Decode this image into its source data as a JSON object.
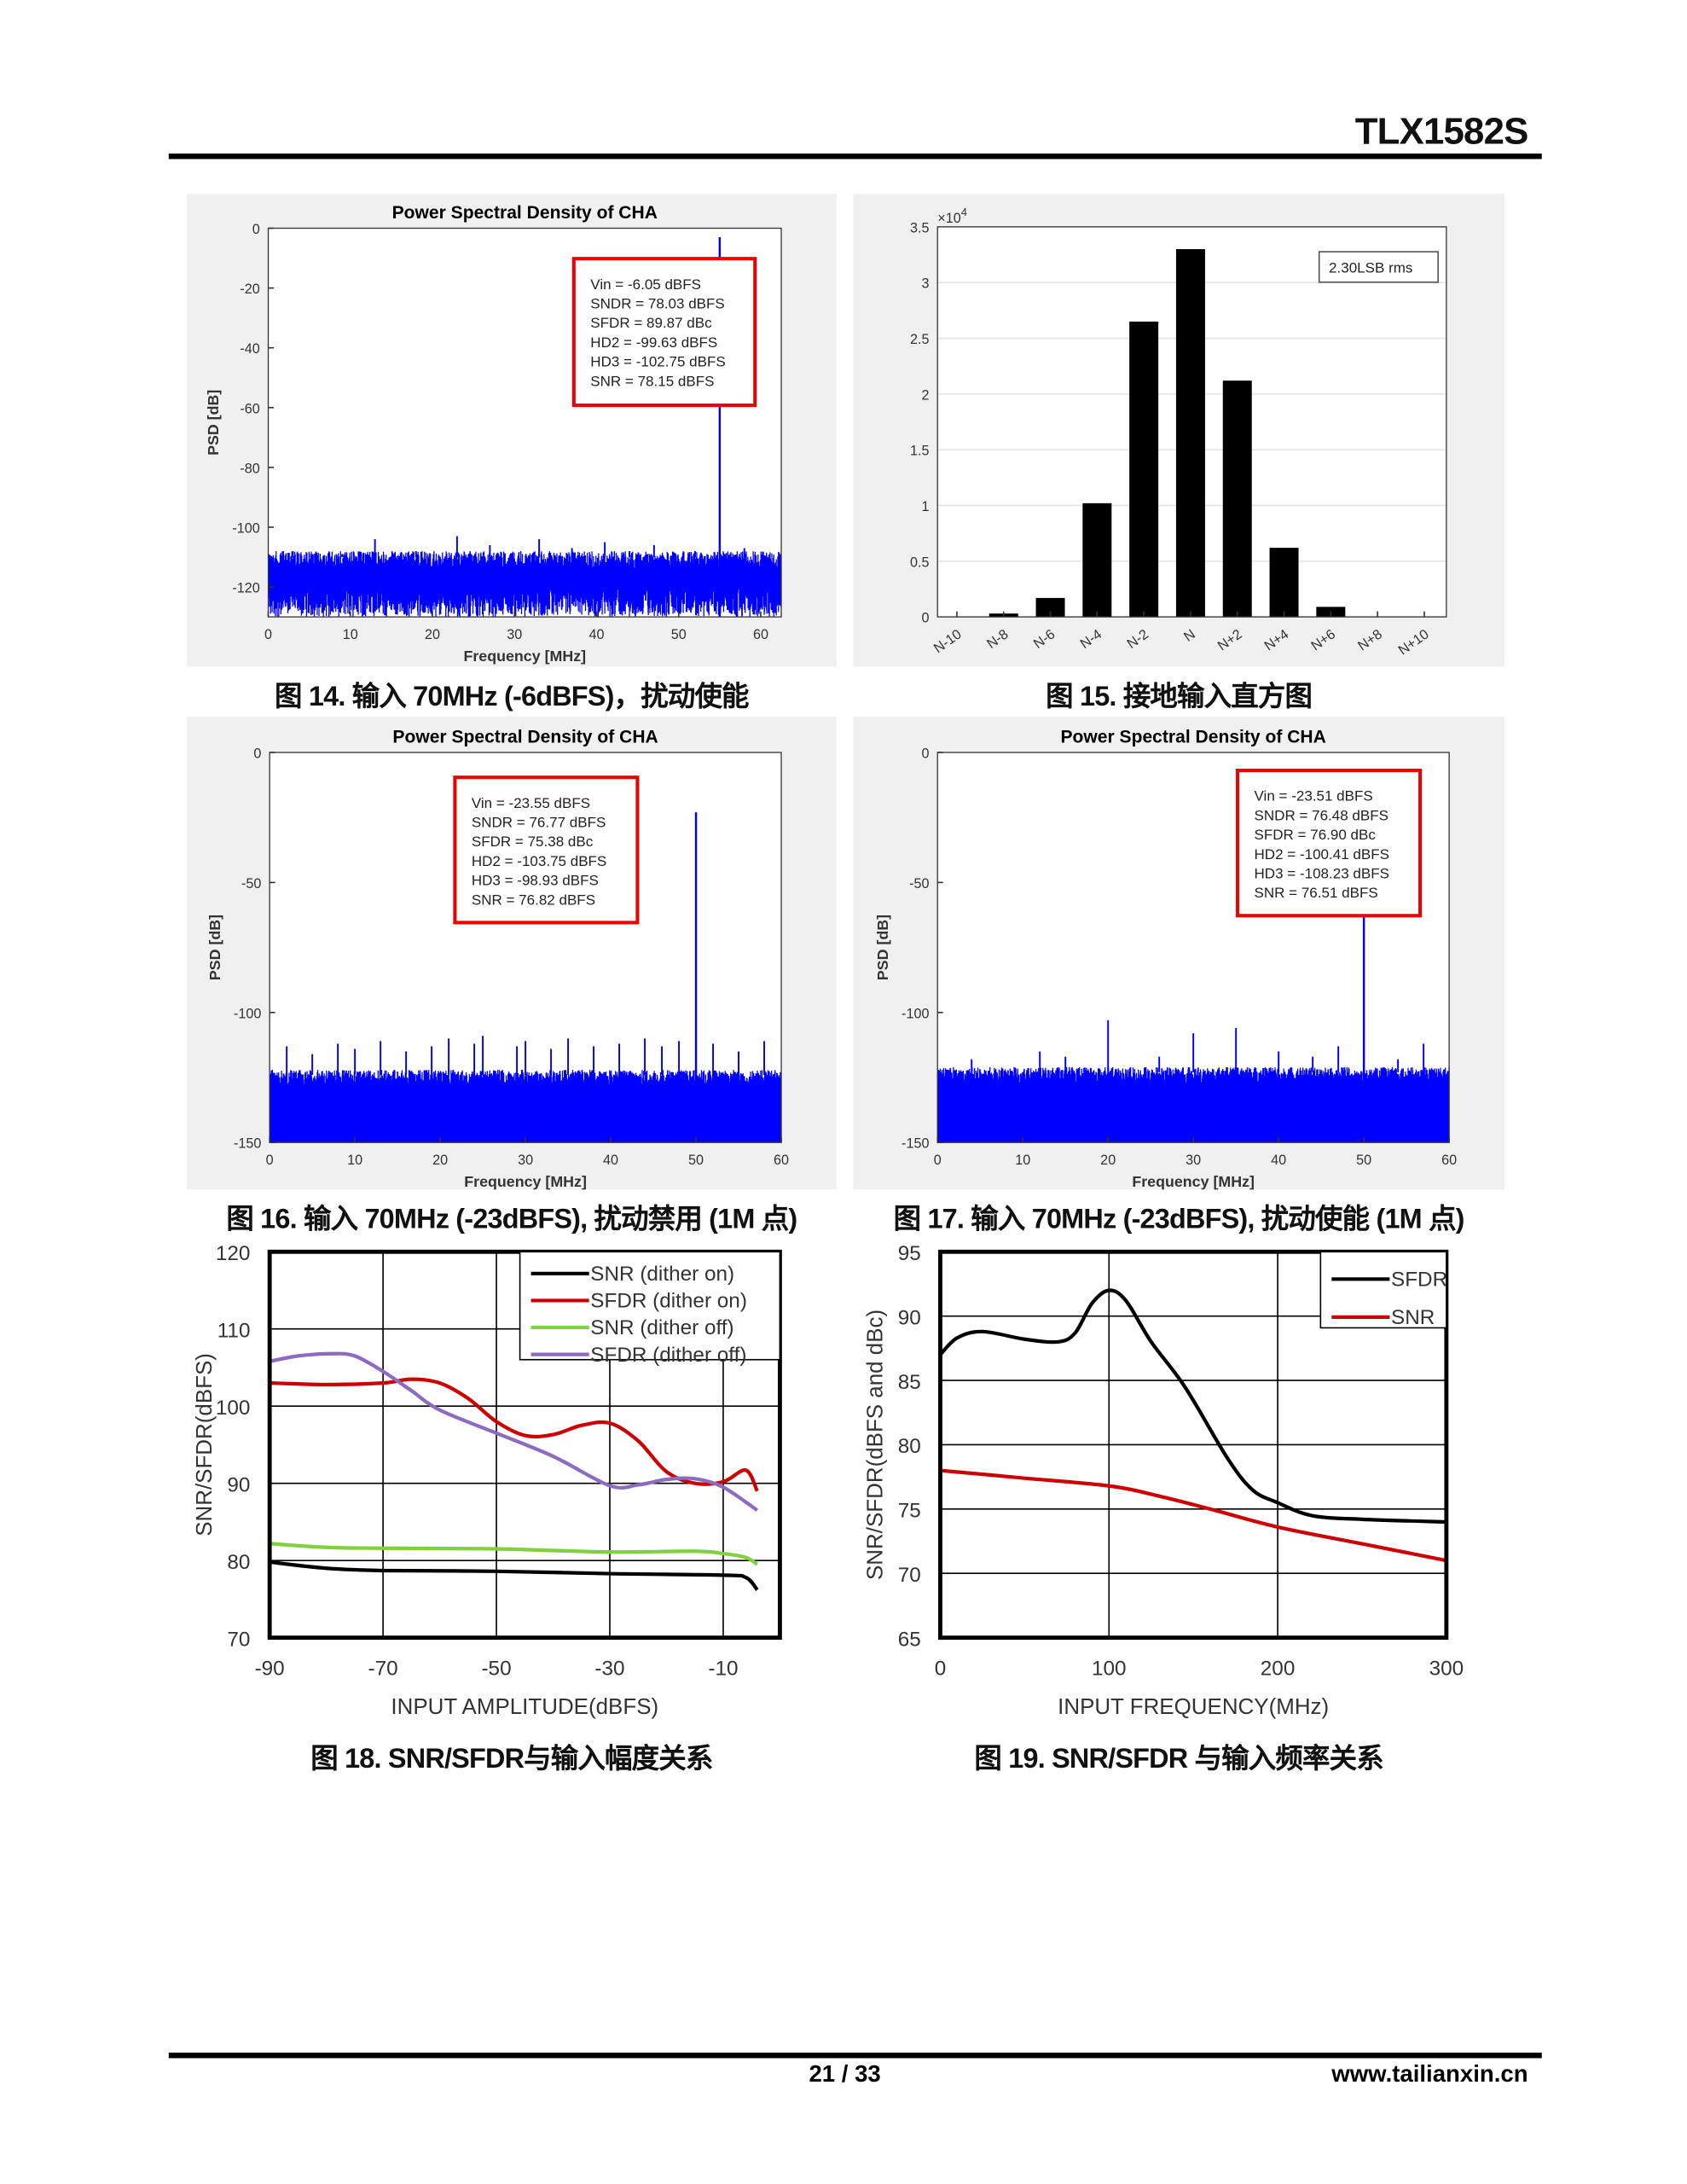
{
  "header": {
    "title": "TLX1582S"
  },
  "footer": {
    "page": "21 / 33",
    "url": "www.tailianxin.cn"
  },
  "captions": [
    "图 14. 输入 70MHz (-6dBFS)，扰动使能",
    "图 15. 接地输入直方图",
    "图 16. 输入 70MHz (-23dBFS), 扰动禁用 (1M 点)",
    "图 17. 输入 70MHz (-23dBFS), 扰动使能 (1M 点)",
    "图 18. SNR/SFDR与输入幅度关系",
    "图 19. SNR/SFDR 与输入频率关系"
  ],
  "chart_data": [
    {
      "id": "fig14",
      "type": "line",
      "title": "Power Spectral Density of CHA",
      "xlabel": "Frequency [MHz]",
      "ylabel": "PSD [dB]",
      "xlim": [
        0,
        62.5
      ],
      "ylim": [
        -130,
        0
      ],
      "xticks": [
        0,
        10,
        20,
        30,
        40,
        50,
        60
      ],
      "yticks": [
        0,
        -20,
        -40,
        -60,
        -80,
        -100,
        -120
      ],
      "color": "#0000ff",
      "tone": {
        "freq": 55,
        "level": -3
      },
      "noise_floor": [
        -130,
        -110
      ],
      "spurs": [
        [
          3,
          -108
        ],
        [
          9,
          -109
        ],
        [
          13,
          -104
        ],
        [
          18,
          -108
        ],
        [
          23,
          -103
        ],
        [
          27,
          -106
        ],
        [
          33,
          -104
        ],
        [
          37,
          -107
        ],
        [
          41,
          -105
        ],
        [
          44,
          -108
        ],
        [
          47,
          -106
        ],
        [
          52,
          -108
        ],
        [
          58,
          -107
        ]
      ],
      "annotation": [
        "Vin = -6.05 dBFS",
        "SNDR = 78.03 dBFS",
        "SFDR = 89.87 dBc",
        "HD2 = -99.63 dBFS",
        "HD3 = -102.75 dBFS",
        "SNR  = 78.15 dBFS"
      ]
    },
    {
      "id": "fig15",
      "type": "bar",
      "categories": [
        "N-10",
        "N-8",
        "N-6",
        "N-4",
        "N-2",
        "N",
        "N+2",
        "N+4",
        "N+6",
        "N+8",
        "N+10"
      ],
      "values": [
        0,
        300,
        1700,
        10200,
        26500,
        33000,
        21200,
        6200,
        900,
        0,
        0
      ],
      "ylim": [
        0,
        35000
      ],
      "yticks": [
        0,
        0.5,
        1,
        1.5,
        2,
        2.5,
        3,
        3.5
      ],
      "y_multiplier": "×10",
      "y_multiplier_exp": "4",
      "legend": "2.30LSB rms",
      "color": "#000000"
    },
    {
      "id": "fig16",
      "type": "line",
      "title": "Power Spectral Density of CHA",
      "xlabel": "Frequency [MHz]",
      "ylabel": "PSD [dB]",
      "xlim": [
        0,
        60
      ],
      "ylim": [
        -150,
        0
      ],
      "xticks": [
        0,
        10,
        20,
        30,
        40,
        50,
        60
      ],
      "yticks": [
        0,
        -50,
        -100,
        -150
      ],
      "color": "#0000ff",
      "tone": {
        "freq": 50,
        "level": -23
      },
      "noise_floor": [
        -150,
        -124
      ],
      "spurs": [
        [
          2,
          -113
        ],
        [
          5,
          -116
        ],
        [
          8,
          -112
        ],
        [
          10,
          -114
        ],
        [
          13,
          -111
        ],
        [
          16,
          -115
        ],
        [
          19,
          -113
        ],
        [
          21,
          -110
        ],
        [
          24,
          -112
        ],
        [
          25,
          -109
        ],
        [
          29,
          -113
        ],
        [
          30,
          -111
        ],
        [
          33,
          -114
        ],
        [
          35,
          -110
        ],
        [
          38,
          -113
        ],
        [
          41,
          -112
        ],
        [
          44,
          -110
        ],
        [
          46,
          -113
        ],
        [
          48,
          -111
        ],
        [
          52,
          -112
        ],
        [
          55,
          -115
        ],
        [
          58,
          -111
        ]
      ],
      "annotation": [
        "Vin = -23.55 dBFS",
        "SNDR = 76.77 dBFS",
        "SFDR = 75.38 dBc",
        "HD2 = -103.75 dBFS",
        "HD3 = -98.93 dBFS",
        "SNR = 76.82 dBFS"
      ]
    },
    {
      "id": "fig17",
      "type": "line",
      "title": "Power Spectral Density of CHA",
      "xlabel": "Frequency [MHz]",
      "ylabel": "PSD [dB]",
      "xlim": [
        0,
        60
      ],
      "ylim": [
        -150,
        0
      ],
      "xticks": [
        0,
        10,
        20,
        30,
        40,
        50,
        60
      ],
      "yticks": [
        0,
        -50,
        -100,
        -150
      ],
      "color": "#0000ff",
      "tone": {
        "freq": 50,
        "level": -57
      },
      "noise_floor": [
        -150,
        -123
      ],
      "spurs": [
        [
          4,
          -118
        ],
        [
          12,
          -115
        ],
        [
          15,
          -117
        ],
        [
          20,
          -103
        ],
        [
          26,
          -117
        ],
        [
          30,
          -108
        ],
        [
          35,
          -106
        ],
        [
          40,
          -115
        ],
        [
          44,
          -117
        ],
        [
          47,
          -113
        ],
        [
          54,
          -118
        ],
        [
          57,
          -112
        ]
      ],
      "annotation": [
        "Vin = -23.51 dBFS",
        "SNDR = 76.48 dBFS",
        "SFDR = 76.90 dBc",
        "HD2 = -100.41 dBFS",
        "HD3 = -108.23 dBFS",
        "SNR = 76.51 dBFS"
      ]
    },
    {
      "id": "fig18",
      "type": "line",
      "xlabel": "INPUT AMPLITUDE(dBFS)",
      "ylabel": "SNR/SFDR(dBFS)",
      "xlim": [
        -90,
        0
      ],
      "ylim": [
        70,
        120
      ],
      "xticks": [
        -90,
        -70,
        -50,
        -30,
        -10
      ],
      "yticks": [
        70,
        80,
        90,
        100,
        110,
        120
      ],
      "grid": true,
      "legend_position": "top-right",
      "series": [
        {
          "name": "SNR  (dither on)",
          "color": "#000000",
          "x": [
            -90,
            -80,
            -70,
            -50,
            -30,
            -10,
            -6,
            -4
          ],
          "y": [
            79.8,
            79,
            78.7,
            78.6,
            78.3,
            78.1,
            77.8,
            76.2
          ]
        },
        {
          "name": "SFDR  (dither on)",
          "color": "#cc0000",
          "x": [
            -90,
            -80,
            -70,
            -65,
            -60,
            -55,
            -50,
            -45,
            -40,
            -35,
            -30,
            -25,
            -20,
            -15,
            -10,
            -6,
            -4
          ],
          "y": [
            103,
            102.8,
            103,
            103.5,
            103,
            101,
            98,
            96.2,
            96.3,
            97.5,
            97.8,
            95.5,
            91.5,
            90,
            90.2,
            91.7,
            89
          ]
        },
        {
          "name": "SNR  (dither off)",
          "color": "#80d040",
          "x": [
            -90,
            -80,
            -70,
            -50,
            -30,
            -15,
            -10,
            -6,
            -4
          ],
          "y": [
            82.2,
            81.7,
            81.6,
            81.5,
            81.1,
            81.2,
            80.9,
            80.4,
            79.5
          ]
        },
        {
          "name": "SFDR  (dither off)",
          "color": "#8c6cc0",
          "x": [
            -90,
            -85,
            -79,
            -75,
            -70,
            -65,
            -60,
            -50,
            -40,
            -30,
            -25,
            -20,
            -15,
            -10,
            -4
          ],
          "y": [
            105.8,
            106.5,
            106.8,
            106.5,
            104.5,
            102,
            99.5,
            96.5,
            93.5,
            89.7,
            89.8,
            90.5,
            90.6,
            89.5,
            86.5
          ]
        }
      ]
    },
    {
      "id": "fig19",
      "type": "line",
      "xlabel": "INPUT FREQUENCY(MHz)",
      "ylabel": "SNR/SFDR(dBFS and dBc)",
      "xlim": [
        0,
        300
      ],
      "ylim": [
        65,
        95
      ],
      "xticks": [
        0,
        100,
        200,
        300
      ],
      "yticks": [
        65,
        70,
        75,
        80,
        85,
        90,
        95
      ],
      "grid": true,
      "legend_position": "top-right",
      "series": [
        {
          "name": "SFDR",
          "color": "#000000",
          "x": [
            0,
            10,
            25,
            50,
            70,
            80,
            90,
            100,
            110,
            125,
            145,
            170,
            185,
            200,
            220,
            250,
            300
          ],
          "y": [
            87,
            88.3,
            88.8,
            88.2,
            88,
            88.7,
            91,
            92,
            91.2,
            88,
            84.5,
            79,
            76.5,
            75.5,
            74.5,
            74.2,
            74
          ]
        },
        {
          "name": "SNR",
          "color": "#cc0000",
          "x": [
            0,
            50,
            100,
            130,
            160,
            200,
            250,
            300
          ],
          "y": [
            78,
            77.4,
            76.8,
            76,
            75,
            73.6,
            72.3,
            71
          ]
        }
      ]
    }
  ]
}
